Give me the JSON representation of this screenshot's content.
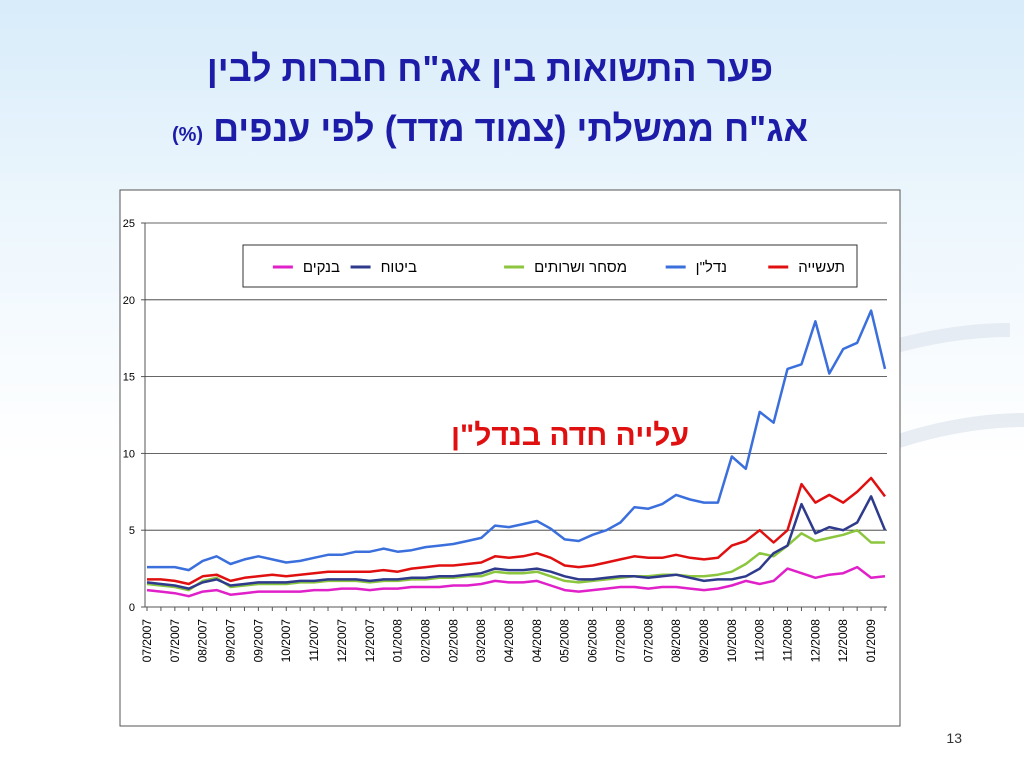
{
  "chart_data": {
    "type": "line",
    "title_line1": "פער התשואות בין אג\"ח חברות לבין",
    "title_line2": "אג\"ח ממשלתי (צמוד מדד) לפי ענפים",
    "title_unit": "(%)",
    "annotation": "עלייה חדה בנדל\"ן",
    "page_number": "13",
    "categories": [
      "07/2007",
      null,
      "07/2007",
      null,
      "08/2007",
      null,
      "09/2007",
      null,
      "09/2007",
      null,
      "10/2007",
      null,
      "11/2007",
      null,
      "12/2007",
      null,
      "12/2007",
      null,
      "01/2008",
      null,
      "02/2008",
      null,
      "02/2008",
      null,
      "03/2008",
      null,
      "04/2008",
      null,
      "04/2008",
      null,
      "05/2008",
      null,
      "06/2008",
      null,
      "07/2008",
      null,
      "07/2008",
      null,
      "08/2008",
      null,
      "09/2008",
      null,
      "10/2008",
      null,
      "11/2008",
      null,
      "11/2008",
      null,
      "12/2008",
      null,
      "12/2008",
      null,
      "01/2009",
      null
    ],
    "series": [
      {
        "name": "תעשייה",
        "color": "#e01010",
        "values": [
          1.8,
          1.8,
          1.7,
          1.5,
          2.0,
          2.1,
          1.7,
          1.9,
          2.0,
          2.1,
          2.0,
          2.1,
          2.2,
          2.3,
          2.3,
          2.3,
          2.3,
          2.4,
          2.3,
          2.5,
          2.6,
          2.7,
          2.7,
          2.8,
          2.9,
          3.3,
          3.2,
          3.3,
          3.5,
          3.2,
          2.7,
          2.6,
          2.7,
          2.9,
          3.1,
          3.3,
          3.2,
          3.2,
          3.4,
          3.2,
          3.1,
          3.2,
          4.0,
          4.3,
          5.0,
          4.2,
          5.0,
          8.0,
          6.8,
          7.3,
          6.8,
          7.5,
          8.4,
          7.2
        ]
      },
      {
        "name": "נדל\"ן",
        "color": "#3a6fdc",
        "values": [
          2.6,
          2.6,
          2.6,
          2.4,
          3.0,
          3.3,
          2.8,
          3.1,
          3.3,
          3.1,
          2.9,
          3.0,
          3.2,
          3.4,
          3.4,
          3.6,
          3.6,
          3.8,
          3.6,
          3.7,
          3.9,
          4.0,
          4.1,
          4.3,
          4.5,
          5.3,
          5.2,
          5.4,
          5.6,
          5.1,
          4.4,
          4.3,
          4.7,
          5.0,
          5.5,
          6.5,
          6.4,
          6.7,
          7.3,
          7.0,
          6.8,
          6.8,
          9.8,
          9.0,
          12.7,
          12.0,
          15.5,
          15.8,
          18.6,
          15.2,
          16.8,
          17.2,
          19.3,
          15.5
        ]
      },
      {
        "name": "מסחר ושרותים",
        "color": "#8cc63e",
        "values": [
          1.5,
          1.4,
          1.3,
          1.1,
          1.7,
          1.9,
          1.3,
          1.4,
          1.5,
          1.5,
          1.5,
          1.6,
          1.6,
          1.7,
          1.7,
          1.7,
          1.6,
          1.7,
          1.7,
          1.8,
          1.8,
          1.9,
          1.9,
          2.0,
          2.0,
          2.3,
          2.2,
          2.2,
          2.3,
          2.0,
          1.7,
          1.6,
          1.7,
          1.8,
          1.9,
          2.0,
          2.0,
          2.1,
          2.1,
          2.0,
          2.0,
          2.1,
          2.3,
          2.8,
          3.5,
          3.3,
          4.0,
          4.8,
          4.3,
          4.5,
          4.7,
          5.0,
          4.2,
          4.2
        ]
      },
      {
        "name": "ביטוח",
        "color": "#2e3a8c",
        "values": [
          1.6,
          1.5,
          1.4,
          1.2,
          1.6,
          1.8,
          1.4,
          1.5,
          1.6,
          1.6,
          1.6,
          1.7,
          1.7,
          1.8,
          1.8,
          1.8,
          1.7,
          1.8,
          1.8,
          1.9,
          1.9,
          2.0,
          2.0,
          2.1,
          2.2,
          2.5,
          2.4,
          2.4,
          2.5,
          2.3,
          2.0,
          1.8,
          1.8,
          1.9,
          2.0,
          2.0,
          1.9,
          2.0,
          2.1,
          1.9,
          1.7,
          1.8,
          1.8,
          2.0,
          2.5,
          3.5,
          4.0,
          6.7,
          4.8,
          5.2,
          5.0,
          5.5,
          7.2,
          5.0
        ]
      },
      {
        "name": "בנקים",
        "color": "#e020c8",
        "values": [
          1.1,
          1.0,
          0.9,
          0.7,
          1.0,
          1.1,
          0.8,
          0.9,
          1.0,
          1.0,
          1.0,
          1.0,
          1.1,
          1.1,
          1.2,
          1.2,
          1.1,
          1.2,
          1.2,
          1.3,
          1.3,
          1.3,
          1.4,
          1.4,
          1.5,
          1.7,
          1.6,
          1.6,
          1.7,
          1.4,
          1.1,
          1.0,
          1.1,
          1.2,
          1.3,
          1.3,
          1.2,
          1.3,
          1.3,
          1.2,
          1.1,
          1.2,
          1.4,
          1.7,
          1.5,
          1.7,
          2.5,
          2.2,
          1.9,
          2.1,
          2.2,
          2.6,
          1.9,
          2.0
        ]
      }
    ],
    "ylim": [
      0,
      25
    ],
    "yticks": [
      0,
      5,
      10,
      15,
      20,
      25
    ],
    "grid": true,
    "legend": "top"
  }
}
